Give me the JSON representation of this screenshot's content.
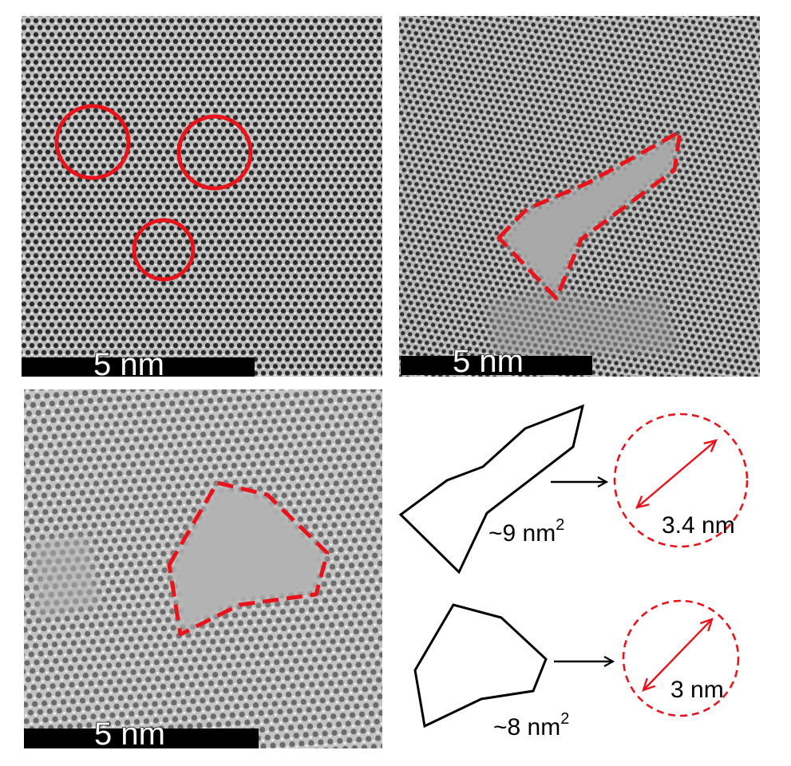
{
  "panels": {
    "panel_a": {
      "scale_bar_label": "5 nm"
    },
    "panel_b": {
      "scale_bar_label": "5 nm"
    },
    "panel_c": {
      "scale_bar_label": "5 nm"
    }
  },
  "schematic": {
    "pore_1": {
      "area_label": "~9 nm",
      "area_exponent": "2",
      "equivalent_diameter_label": "3.4 nm"
    },
    "pore_2": {
      "area_label": "~8 nm",
      "area_exponent": "2",
      "equivalent_diameter_label": "3 nm"
    }
  },
  "colors": {
    "annotation_red": "#e8141c",
    "outline_black": "#000000",
    "background_gray": "#a8a8a8"
  }
}
